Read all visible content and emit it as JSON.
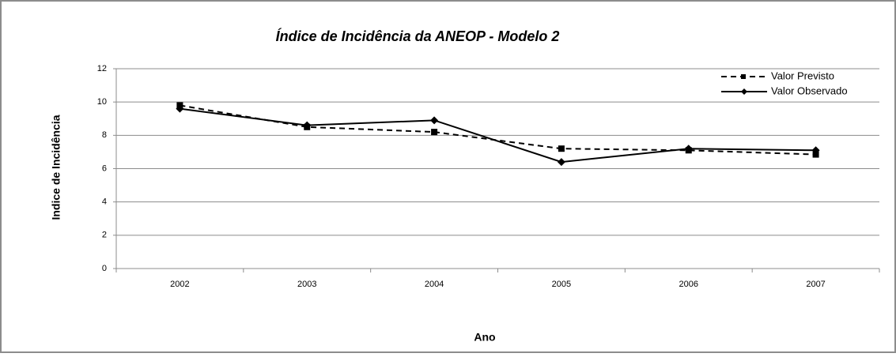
{
  "chart_data": {
    "type": "line",
    "title": "Índice de Incidência da ANEOP - Modelo 2",
    "x_label": "Ano",
    "y_label": "Indice de Incidência",
    "categories": [
      "2002",
      "2003",
      "2004",
      "2005",
      "2006",
      "2007"
    ],
    "series": [
      {
        "name": "Valor Previsto",
        "color": "#000000",
        "dash": true,
        "marker": "square",
        "values": [
          9.8,
          8.5,
          8.2,
          7.2,
          7.1,
          6.85
        ]
      },
      {
        "name": "Valor Observado",
        "color": "#000000",
        "dash": false,
        "marker": "diamond",
        "values": [
          9.6,
          8.6,
          8.9,
          6.4,
          7.2,
          7.1
        ]
      }
    ],
    "ylim": [
      0,
      12
    ],
    "yticks": [
      0,
      2,
      4,
      6,
      8,
      10,
      12
    ],
    "grid": true,
    "legend": "top-right"
  }
}
